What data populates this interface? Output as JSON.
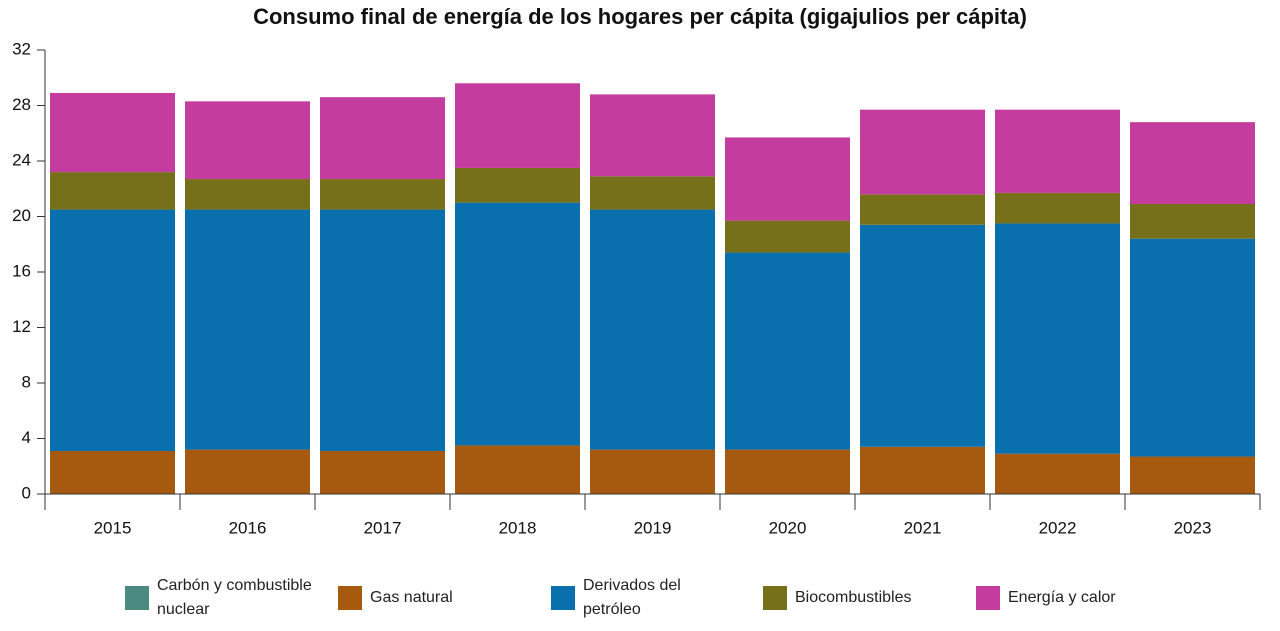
{
  "chart_data": {
    "type": "stacked-bar",
    "title": "Consumo final de energía de los hogares per cápita (gigajulios per cápita)",
    "categories": [
      "2015",
      "2016",
      "2017",
      "2018",
      "2019",
      "2020",
      "2021",
      "2022",
      "2023"
    ],
    "series": [
      {
        "name": "Carbón y combustible nuclear",
        "color": "#4a8a80",
        "values": [
          0,
          0,
          0,
          0,
          0,
          0,
          0,
          0,
          0
        ]
      },
      {
        "name": "Gas natural",
        "color": "#a65a10",
        "values": [
          3.1,
          3.2,
          3.1,
          3.5,
          3.2,
          3.2,
          3.4,
          2.9,
          2.7
        ]
      },
      {
        "name": "Derivados del petróleo",
        "color": "#0a6fad",
        "values": [
          17.4,
          17.3,
          17.4,
          17.5,
          17.3,
          14.2,
          16.0,
          16.6,
          15.7
        ]
      },
      {
        "name": "Biocombustibles",
        "color": "#76701a",
        "values": [
          2.7,
          2.2,
          2.2,
          2.5,
          2.4,
          2.3,
          2.2,
          2.2,
          2.5
        ]
      },
      {
        "name": "Energía y calor",
        "color": "#c43c9e",
        "values": [
          5.7,
          5.6,
          5.9,
          6.1,
          5.9,
          6.0,
          6.1,
          6.0,
          5.9
        ]
      }
    ],
    "ylim": [
      0,
      32
    ],
    "yticks": [
      0,
      4,
      8,
      12,
      16,
      20,
      24,
      28,
      32
    ]
  }
}
